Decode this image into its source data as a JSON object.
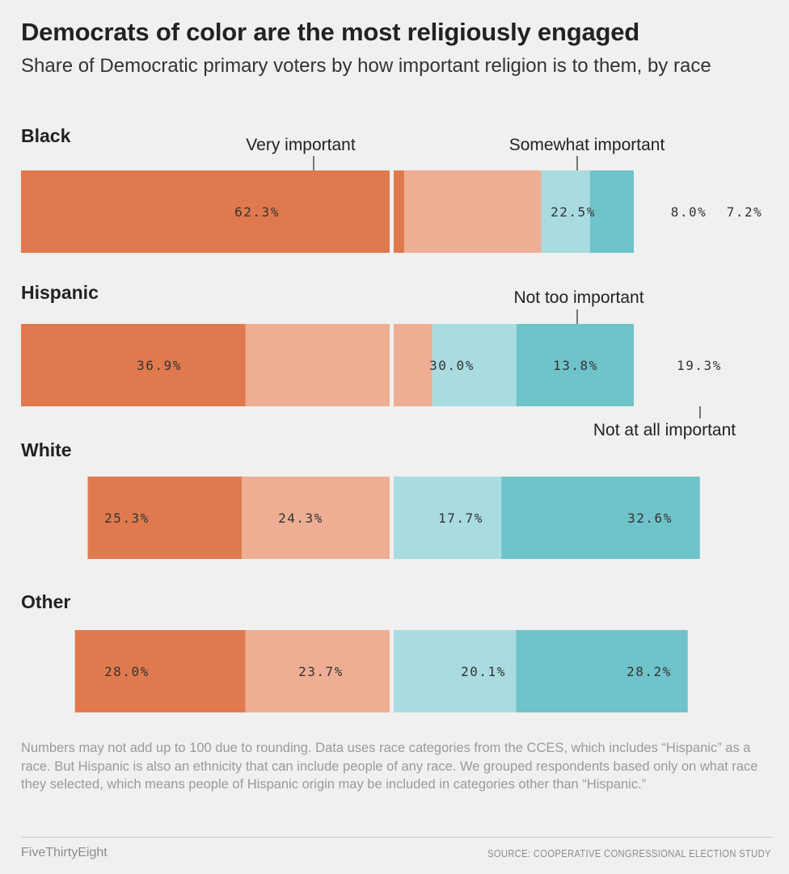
{
  "title": "Democrats of color are the most religiously engaged",
  "subtitle": "Share of Democratic primary voters by how important religion is to them, by race",
  "note": "Numbers may not add up to 100 due to rounding. Data uses race categories from the CCES, which includes “Hispanic” as a race. But Hispanic is also an ethnicity that can include people of any race. We grouped respondents based only on what race they selected, which means people of Hispanic origin may be included in categories other than “Hispanic.”",
  "footer": {
    "brand": "FiveThirtyEight",
    "source": "SOURCE: COOPERATIVE CONGRESSIONAL ELECTION STUDY"
  },
  "colors": {
    "very_important": "#e07a4e",
    "somewhat_important": "#eeae94",
    "not_too_important": "#a9dbe0",
    "not_at_all_important": "#6fc3ca",
    "background": "#f0f0f0"
  },
  "chart_data": {
    "type": "bar",
    "orientation": "horizontal",
    "stacked": true,
    "title": "Democrats of color are the most religiously engaged",
    "subtitle": "Share of Democratic primary voters by how important religion is to them, by race",
    "categories": [
      "Black",
      "Hispanic",
      "White",
      "Other"
    ],
    "series": [
      {
        "name": "Very important",
        "values": [
          62.3,
          36.9,
          25.3,
          28.0
        ]
      },
      {
        "name": "Somewhat important",
        "values": [
          22.5,
          30.0,
          24.3,
          23.7
        ]
      },
      {
        "name": "Not too important",
        "values": [
          8.0,
          13.8,
          17.7,
          20.1
        ]
      },
      {
        "name": "Not at all important",
        "values": [
          7.2,
          19.3,
          32.6,
          28.2
        ]
      }
    ],
    "data_labels": [
      [
        "62.3%",
        "22.5%",
        "8.0%",
        "7.2%"
      ],
      [
        "36.9%",
        "30.0%",
        "13.8%",
        "19.3%"
      ],
      [
        "25.3%",
        "24.3%",
        "17.7%",
        "32.6%"
      ],
      [
        "28.0%",
        "23.7%",
        "20.1%",
        "28.2%"
      ]
    ],
    "annotations": [
      {
        "text": "Very important",
        "category": "Black",
        "series": "Very important"
      },
      {
        "text": "Somewhat important",
        "category": "Black",
        "series": "Somewhat important"
      },
      {
        "text": "Not too important",
        "category": "Hispanic",
        "series": "Not too important"
      },
      {
        "text": "Not at all important",
        "category": "Hispanic",
        "series": "Not at all important"
      }
    ],
    "layout_note": "Bars diverge around a central gap between important and not important",
    "xlim": [
      0,
      100
    ],
    "grid": false,
    "legend": "inline annotations"
  }
}
